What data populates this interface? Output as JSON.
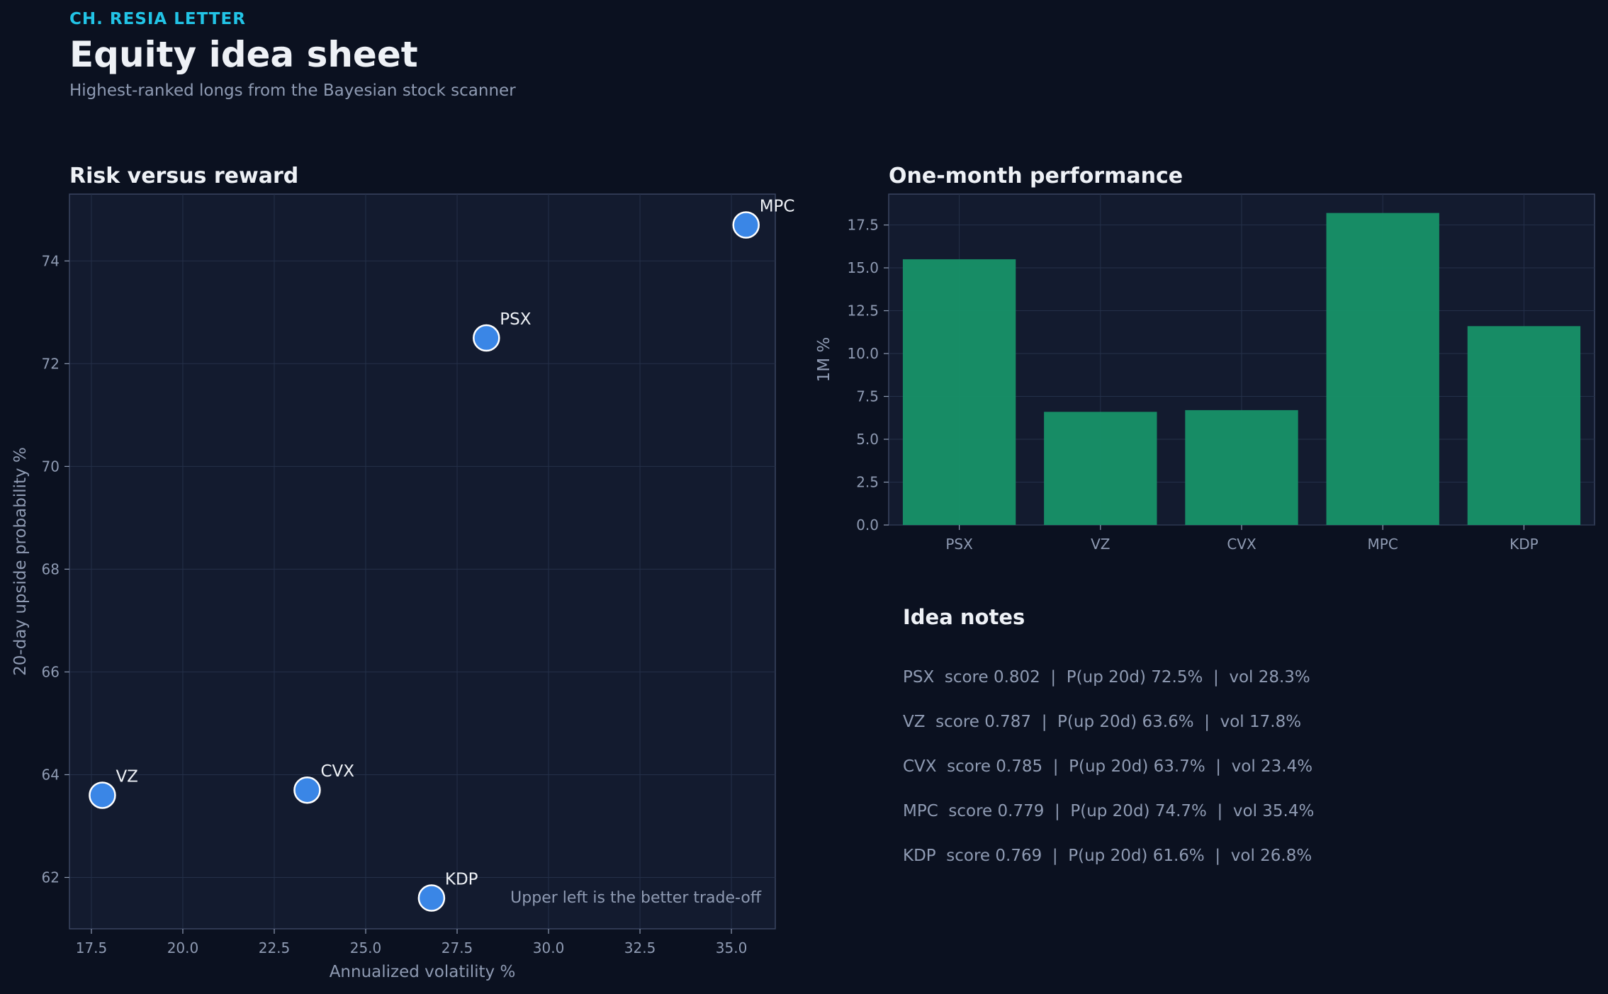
{
  "header": {
    "kicker": "CH. RESIA LETTER",
    "title": "Equity idea sheet",
    "subtitle": "Highest-ranked longs from the Bayesian stock scanner"
  },
  "colors": {
    "background": "#0b1120",
    "panel": "#131b2f",
    "point": "#3a86e6",
    "bar": "#179268",
    "accent": "#22c4e6"
  },
  "chart_data": [
    {
      "type": "scatter",
      "title": "Risk versus reward",
      "xlabel": "Annualized volatility %",
      "ylabel": "20-day upside probability %",
      "xlim": [
        16.9,
        36.2
      ],
      "ylim": [
        61.0,
        75.3
      ],
      "xticks": [
        "17.5",
        "20.0",
        "22.5",
        "25.0",
        "27.5",
        "30.0",
        "32.5",
        "35.0"
      ],
      "yticks": [
        "62",
        "64",
        "66",
        "68",
        "70",
        "72",
        "74"
      ],
      "grid": true,
      "annotation": "Upper left is the better trade-off",
      "points": [
        {
          "label": "PSX",
          "x": 28.3,
          "y": 72.5
        },
        {
          "label": "VZ",
          "x": 17.8,
          "y": 63.6
        },
        {
          "label": "CVX",
          "x": 23.4,
          "y": 63.7
        },
        {
          "label": "MPC",
          "x": 35.4,
          "y": 74.7
        },
        {
          "label": "KDP",
          "x": 26.8,
          "y": 61.6
        }
      ]
    },
    {
      "type": "bar",
      "title": "One-month performance",
      "xlabel": "",
      "ylabel": "1M %",
      "categories": [
        "PSX",
        "VZ",
        "CVX",
        "MPC",
        "KDP"
      ],
      "values": [
        15.5,
        6.6,
        6.7,
        18.2,
        11.6
      ],
      "ylim": [
        0,
        19.3
      ],
      "yticks": [
        "0.0",
        "2.5",
        "5.0",
        "7.5",
        "10.0",
        "12.5",
        "15.0",
        "17.5"
      ],
      "grid": true
    }
  ],
  "notes": {
    "title": "Idea notes",
    "items": [
      "PSX  score 0.802  |  P(up 20d) 72.5%  |  vol 28.3%",
      "VZ  score 0.787  |  P(up 20d) 63.6%  |  vol 17.8%",
      "CVX  score 0.785  |  P(up 20d) 63.7%  |  vol 23.4%",
      "MPC  score 0.779  |  P(up 20d) 74.7%  |  vol 35.4%",
      "KDP  score 0.769  |  P(up 20d) 61.6%  |  vol 26.8%"
    ]
  }
}
